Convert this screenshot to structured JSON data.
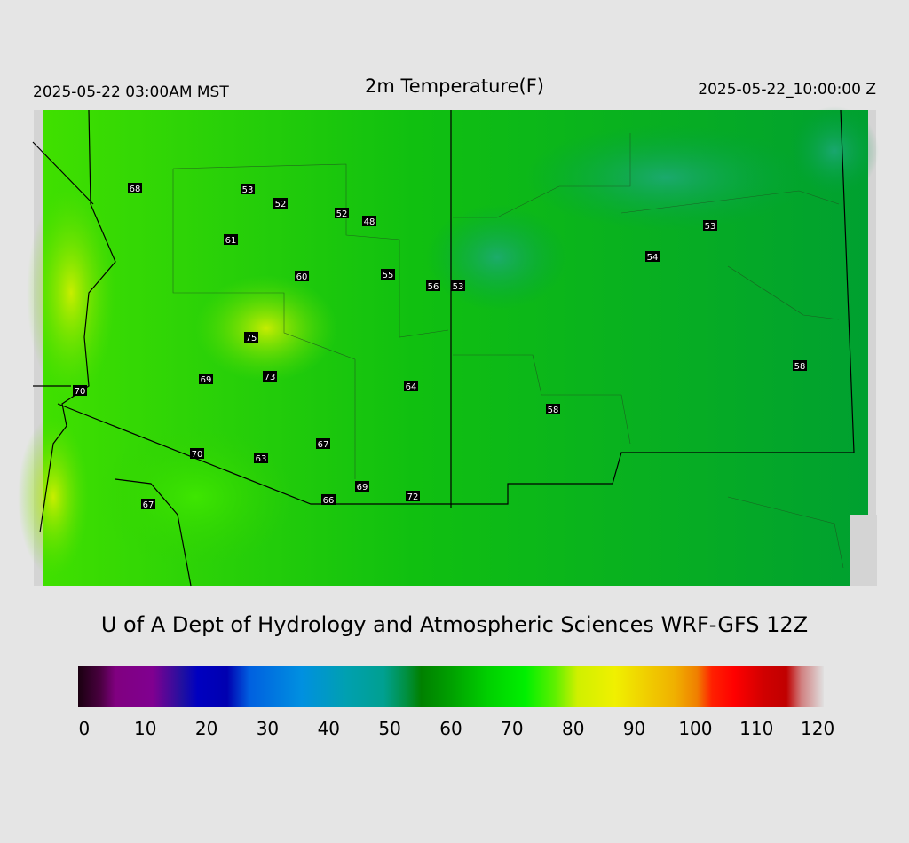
{
  "header": {
    "left": "2025-05-22 03:00AM MST",
    "title": "2m Temperature(F)",
    "right": "2025-05-22_10:00:00 Z"
  },
  "map": {
    "stations": [
      68,
      53,
      52,
      52,
      48,
      61,
      60,
      55,
      56,
      53,
      54,
      53,
      75,
      69,
      73,
      64,
      58,
      58,
      70,
      67,
      70,
      63,
      69,
      72,
      66,
      67
    ]
  },
  "credit": "U of A Dept of Hydrology and Atmospheric Sciences WRF-GFS 12Z",
  "colorbar": {
    "lim": [
      -1,
      121
    ],
    "ticks": [
      0,
      10,
      20,
      30,
      40,
      50,
      60,
      70,
      80,
      90,
      100,
      110,
      120
    ]
  }
}
